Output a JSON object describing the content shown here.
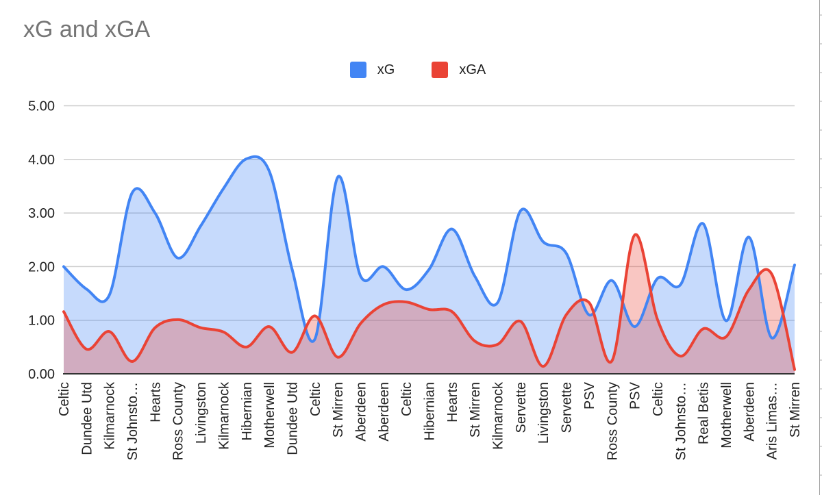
{
  "chart_data": {
    "type": "area",
    "title": "xG and xGA",
    "xlabel": "",
    "ylabel": "",
    "ylim": [
      0,
      5
    ],
    "yticks": [
      "0.00",
      "1.00",
      "2.00",
      "3.00",
      "4.00",
      "5.00"
    ],
    "grid": true,
    "legend_position": "top",
    "categories": [
      "Celtic",
      "Dundee Utd",
      "Kilmarnock",
      "St Johnsto…",
      "Hearts",
      "Ross County",
      "Livingston",
      "Kilmarnock",
      "Hibernian",
      "Motherwell",
      "Dundee Utd",
      "Celtic",
      "St Mirren",
      "Aberdeen",
      "Aberdeen",
      "Celtic",
      "Hibernian",
      "Hearts",
      "St Mirren",
      "Kilmarnock",
      "Servette",
      "Livingston",
      "Servette",
      "PSV",
      "Ross County",
      "PSV",
      "Celtic",
      "St Johnsto…",
      "Real Betis",
      "Motherwell",
      "Aberdeen",
      "Aris Limas…",
      "St Mirren"
    ],
    "series": [
      {
        "name": "xG",
        "color": "#4285f4",
        "fill": "#c6dafa",
        "values": [
          2.0,
          1.58,
          1.47,
          3.38,
          3.0,
          2.16,
          2.76,
          3.46,
          4.01,
          3.78,
          1.95,
          0.65,
          3.67,
          1.82,
          2.0,
          1.57,
          1.95,
          2.7,
          1.82,
          1.33,
          3.04,
          2.46,
          2.25,
          1.1,
          1.74,
          0.88,
          1.78,
          1.66,
          2.8,
          0.99,
          2.55,
          0.67,
          2.03
        ]
      },
      {
        "name": "xGA",
        "color": "#ea4335",
        "fill": "#f8c4c0",
        "values": [
          1.16,
          0.46,
          0.79,
          0.23,
          0.86,
          1.01,
          0.86,
          0.78,
          0.5,
          0.88,
          0.4,
          1.08,
          0.31,
          0.94,
          1.29,
          1.34,
          1.2,
          1.16,
          0.61,
          0.55,
          0.98,
          0.14,
          1.1,
          1.33,
          0.24,
          2.59,
          1.01,
          0.33,
          0.84,
          0.69,
          1.57,
          1.86,
          0.08
        ]
      }
    ]
  }
}
